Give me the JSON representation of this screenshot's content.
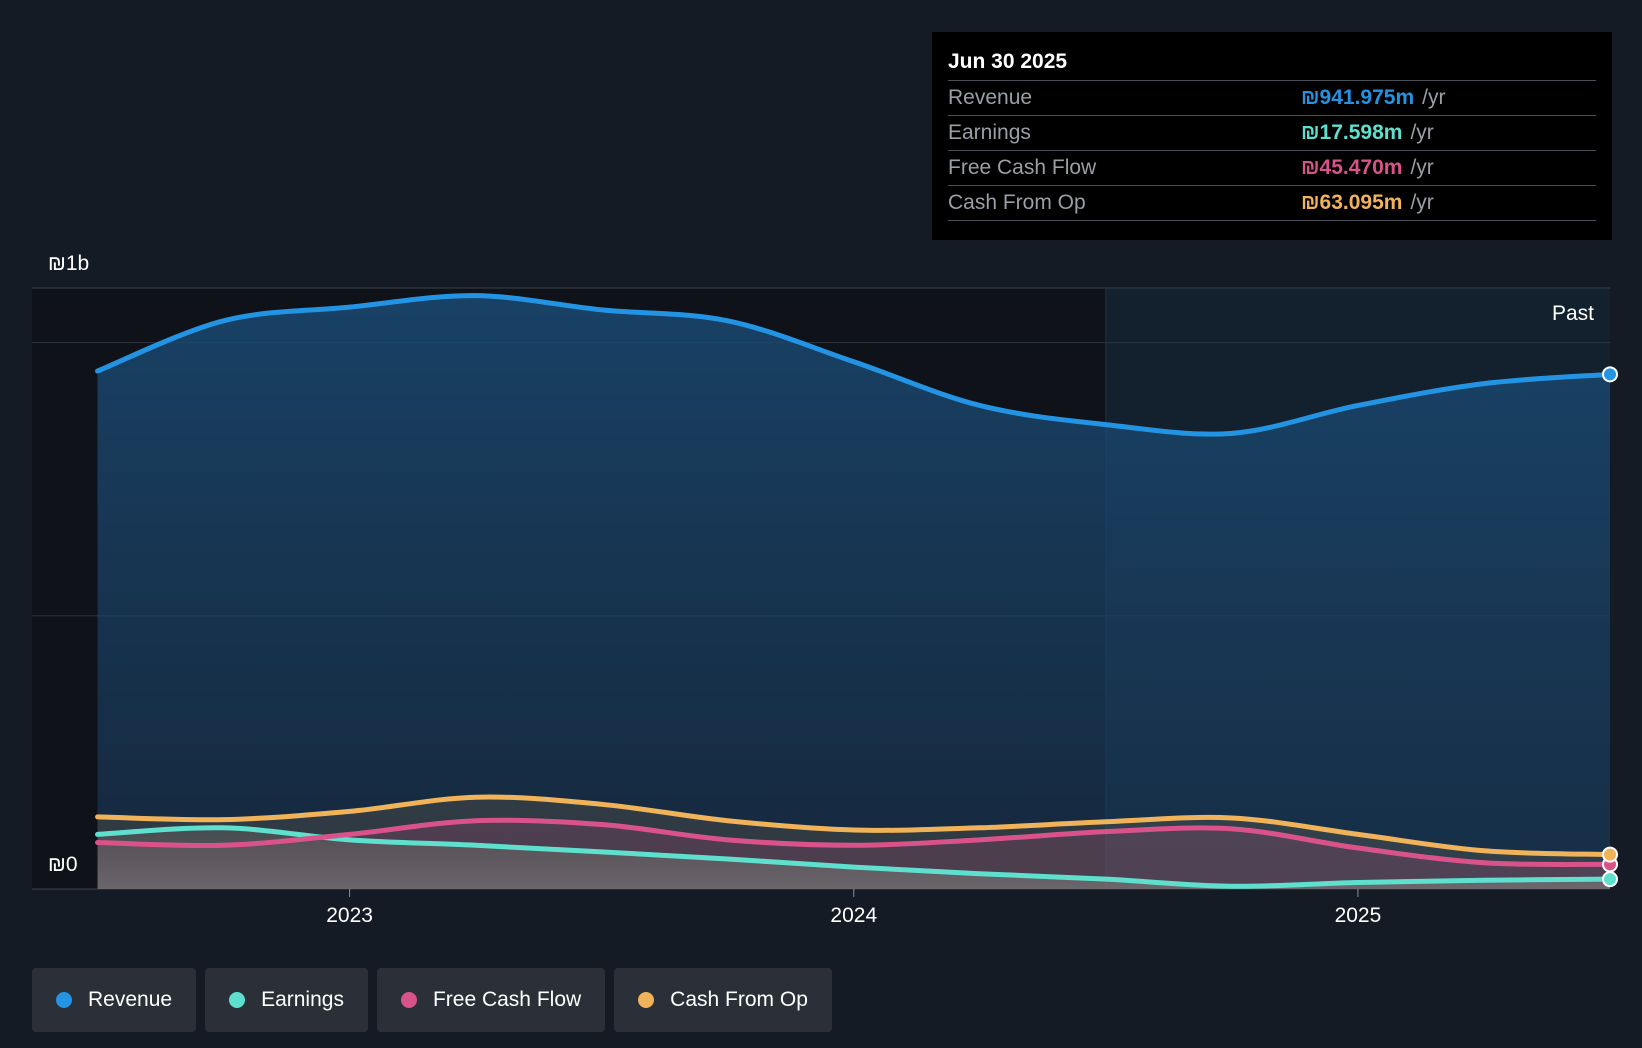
{
  "tooltip": {
    "date": "Jun 30 2025",
    "rows": [
      {
        "label": "Revenue",
        "value": "₪941.975m",
        "unit": "/yr",
        "color": "#2394e3"
      },
      {
        "label": "Earnings",
        "value": "₪17.598m",
        "unit": "/yr",
        "color": "#5fe0cf"
      },
      {
        "label": "Free Cash Flow",
        "value": "₪45.470m",
        "unit": "/yr",
        "color": "#d9538a"
      },
      {
        "label": "Cash From Op",
        "value": "₪63.095m",
        "unit": "/yr",
        "color": "#f0b35a"
      }
    ]
  },
  "legend": [
    {
      "label": "Revenue",
      "color": "#2394e3"
    },
    {
      "label": "Earnings",
      "color": "#5fe0cf"
    },
    {
      "label": "Free Cash Flow",
      "color": "#d9538a"
    },
    {
      "label": "Cash From Op",
      "color": "#f0b35a"
    }
  ],
  "chart_data": {
    "type": "area",
    "x_unit": "year",
    "y_unit": "₪m",
    "ylim": [
      0,
      1100
    ],
    "xlim": [
      2022.37,
      2025.5
    ],
    "y_tick_labels": [
      {
        "value": 0,
        "label": "₪0"
      },
      {
        "value": 1000,
        "label": "₪1b"
      }
    ],
    "x_ticks": [
      2023,
      2024,
      2025
    ],
    "x_tick_labels": [
      "2023",
      "2024",
      "2025"
    ],
    "past_label": "Past",
    "past_start": 2024.5,
    "grid": true,
    "legend_position": "bottom-left",
    "series": [
      {
        "name": "Revenue",
        "color": "#2394e3",
        "x": [
          2022.5,
          2022.75,
          2023.0,
          2023.25,
          2023.5,
          2023.75,
          2024.0,
          2024.25,
          2024.5,
          2024.75,
          2025.0,
          2025.25,
          2025.5
        ],
        "y": [
          948,
          1040,
          1065,
          1086,
          1060,
          1040,
          965,
          885,
          850,
          834,
          885,
          925,
          942
        ]
      },
      {
        "name": "Earnings",
        "color": "#5fe0cf",
        "x": [
          2022.5,
          2022.75,
          2023.0,
          2023.25,
          2023.5,
          2023.75,
          2024.0,
          2024.25,
          2024.5,
          2024.75,
          2025.0,
          2025.25,
          2025.5
        ],
        "y": [
          100,
          112,
          90,
          80,
          68,
          55,
          40,
          28,
          18,
          5,
          12,
          16,
          18
        ]
      },
      {
        "name": "Free Cash Flow",
        "color": "#d9538a",
        "x": [
          2022.5,
          2022.75,
          2023.0,
          2023.25,
          2023.5,
          2023.75,
          2024.0,
          2024.25,
          2024.5,
          2024.75,
          2025.0,
          2025.25,
          2025.5
        ],
        "y": [
          85,
          80,
          100,
          125,
          118,
          90,
          80,
          90,
          105,
          110,
          75,
          48,
          45
        ]
      },
      {
        "name": "Cash From Op",
        "color": "#f0b35a",
        "x": [
          2022.5,
          2022.75,
          2023.0,
          2023.25,
          2023.5,
          2023.75,
          2024.0,
          2024.25,
          2024.5,
          2024.75,
          2025.0,
          2025.25,
          2025.5
        ],
        "y": [
          132,
          127,
          142,
          168,
          155,
          125,
          108,
          112,
          123,
          130,
          100,
          70,
          63
        ]
      }
    ]
  }
}
